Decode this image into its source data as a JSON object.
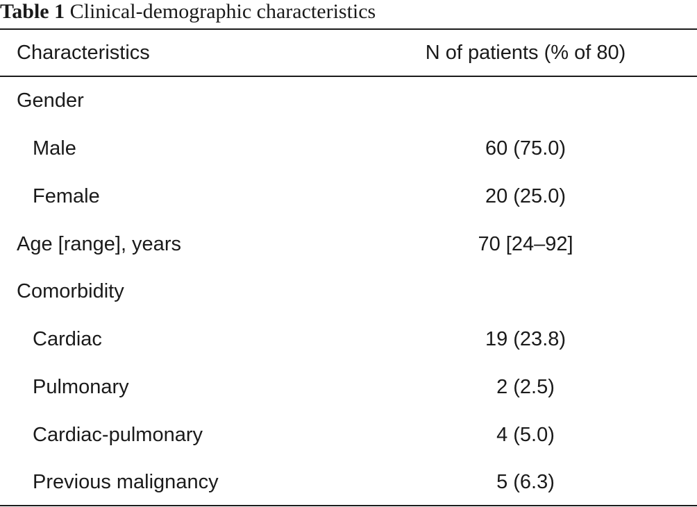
{
  "table": {
    "caption_label": "Table 1",
    "caption_text": "Clinical-demographic characteristics",
    "header": {
      "characteristics": "Characteristics",
      "n_patients": "N of patients (% of 80)"
    },
    "rows": [
      {
        "characteristic": "Gender",
        "value": ""
      },
      {
        "characteristic": "Male",
        "value": "60 (75.0)"
      },
      {
        "characteristic": "Female",
        "value": "20 (25.0)"
      },
      {
        "characteristic": "Age [range], years",
        "value": "70 [24–92]"
      },
      {
        "characteristic": "Comorbidity",
        "value": ""
      },
      {
        "characteristic": "Cardiac",
        "value": "19 (23.8)"
      },
      {
        "characteristic": "Pulmonary",
        "value": "2 (2.5)"
      },
      {
        "characteristic": "Cardiac-pulmonary",
        "value": "4 (5.0)"
      },
      {
        "characteristic": "Previous malignancy",
        "value": "5 (6.3)"
      }
    ]
  }
}
